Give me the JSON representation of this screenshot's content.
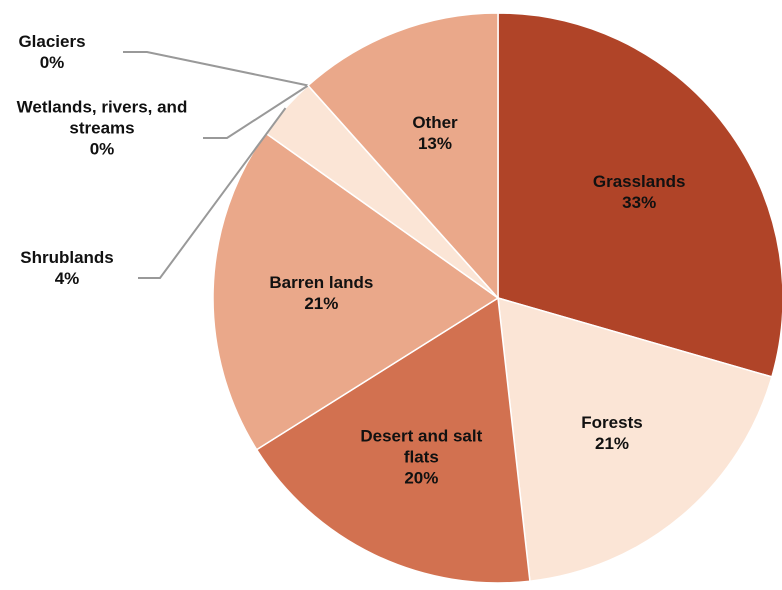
{
  "chart_data": {
    "type": "pie",
    "categories": [
      "Grasslands",
      "Forests",
      "Desert and salt flats",
      "Barren lands",
      "Shrublands",
      "Wetlands, rivers, and streams",
      "Glaciers",
      "Other"
    ],
    "values": [
      33,
      21,
      20,
      21,
      4,
      0,
      0,
      13
    ],
    "value_labels": [
      "33%",
      "21%",
      "20%",
      "21%",
      "4%",
      "0%",
      "0%",
      "13%"
    ],
    "colors": [
      "#b04428",
      "#fbe5d6",
      "#d27150",
      "#eaa88a",
      "#fbe5d6",
      "#b04428",
      "#d27150",
      "#eaa88a"
    ]
  }
}
